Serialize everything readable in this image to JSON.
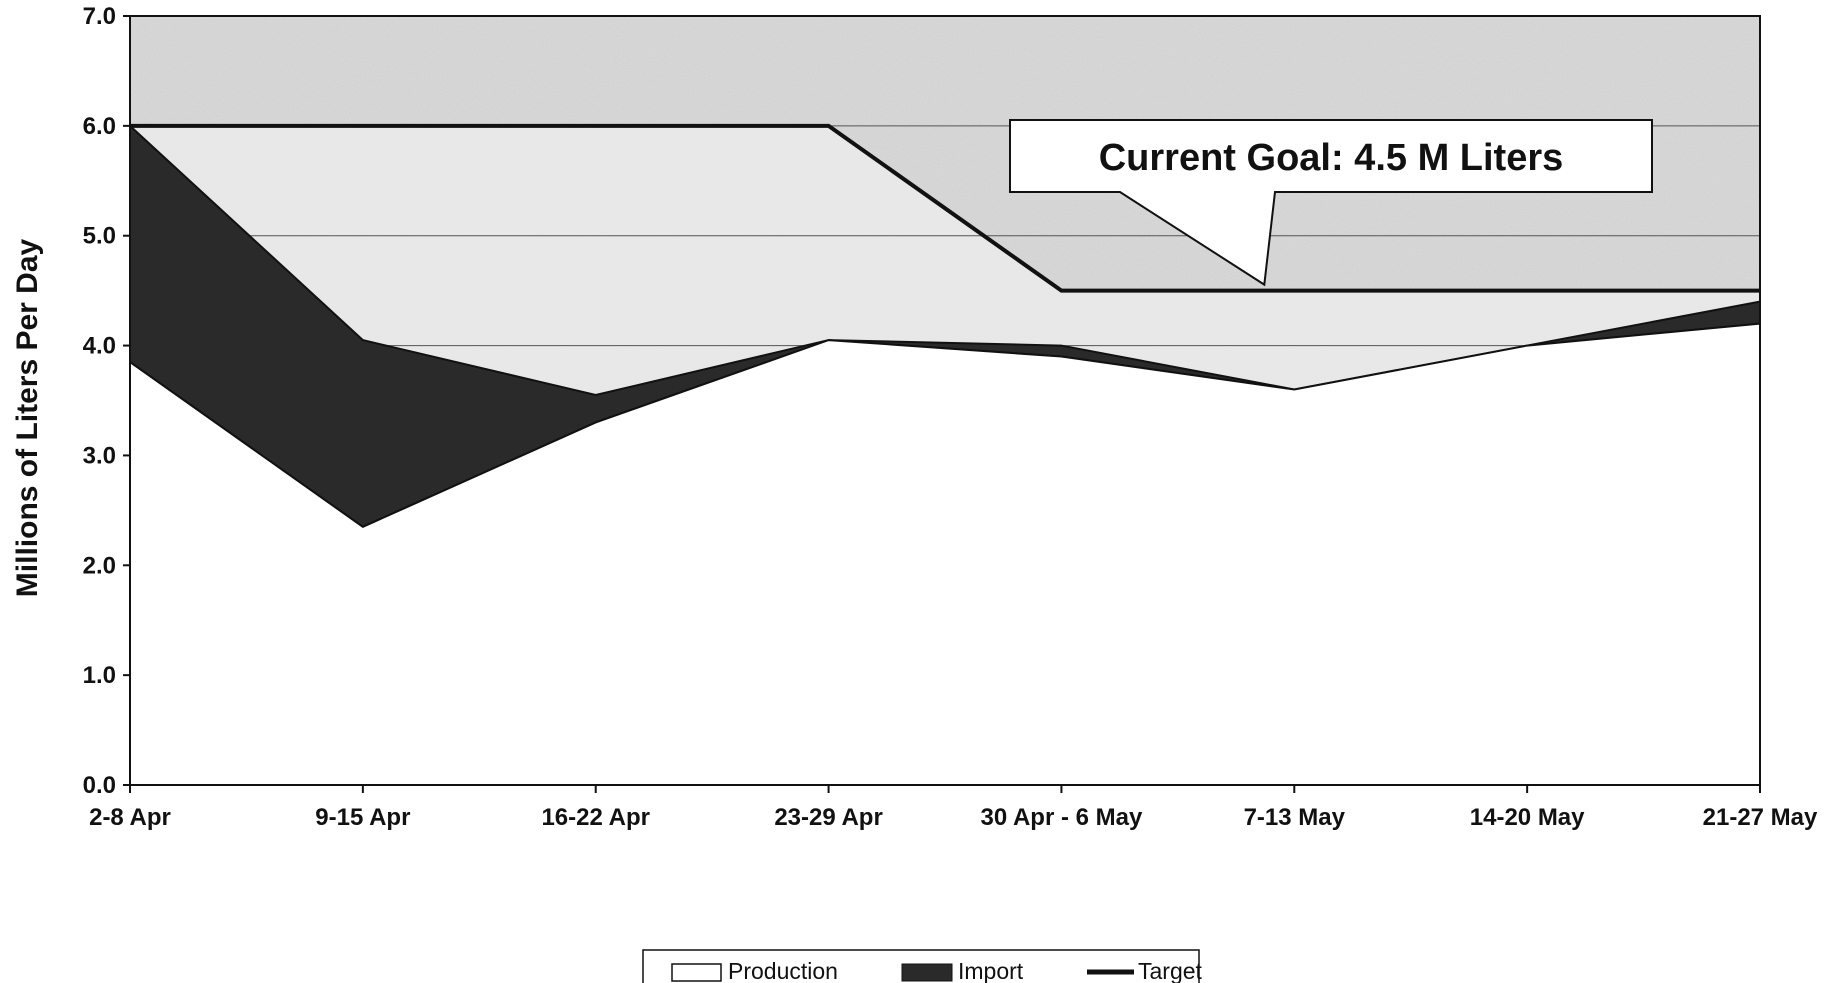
{
  "chart_data": {
    "type": "area",
    "title": "",
    "xlabel": "",
    "ylabel": "Millions of Liters Per Day",
    "ylim": [
      0,
      7
    ],
    "y_ticks": [
      "0.0",
      "1.0",
      "2.0",
      "3.0",
      "4.0",
      "5.0",
      "6.0",
      "7.0"
    ],
    "categories": [
      "2-8 Apr",
      "9-15 Apr",
      "16-22 Apr",
      "23-29 Apr",
      "30 Apr - 6 May",
      "7-13 May",
      "14-20 May",
      "21-27 May"
    ],
    "series": [
      {
        "name": "Production",
        "kind": "stacked-area",
        "values": [
          3.85,
          2.35,
          3.3,
          4.05,
          3.9,
          3.6,
          4.0,
          4.2
        ]
      },
      {
        "name": "Import",
        "kind": "stacked-area",
        "values": [
          2.15,
          1.7,
          0.25,
          0.0,
          0.1,
          0.0,
          0.0,
          0.2
        ]
      },
      {
        "name": "Target",
        "kind": "line",
        "values": [
          6.0,
          6.0,
          6.0,
          6.0,
          4.5,
          4.5,
          4.5,
          4.5
        ]
      }
    ],
    "grid": true,
    "legend_position": "bottom",
    "annotation": {
      "text": "Current Goal:  4.5 M Liters",
      "points_to_category": "7-13 May",
      "points_to_value": 4.5
    },
    "colors": {
      "production": "#ffffff",
      "import": "#2a2a2a",
      "target": "#111111",
      "background": "#d8d8d8"
    }
  }
}
